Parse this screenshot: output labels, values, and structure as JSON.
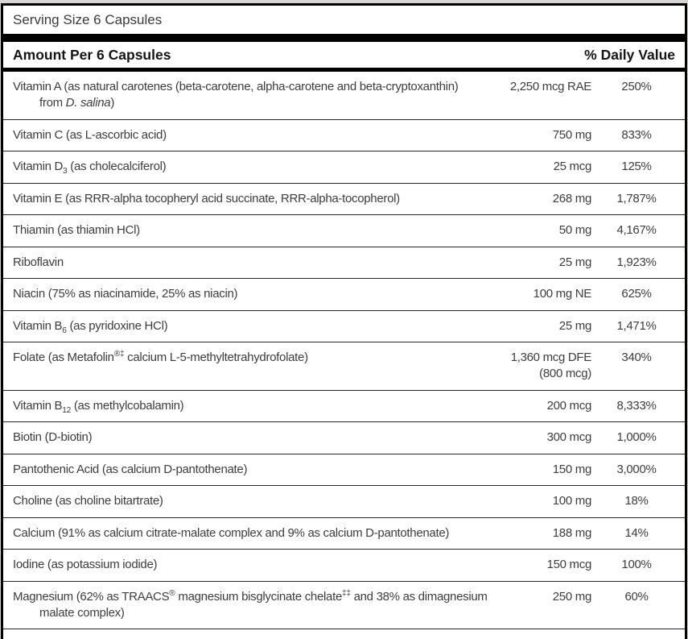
{
  "label": {
    "serving_size": "Serving Size 6 Capsules",
    "header": {
      "amount_col": "Amount Per 6 Capsules",
      "dv_col": "% Daily Value"
    },
    "rows": [
      {
        "name_lines": [
          "Vitamin A (as natural carotenes (beta-carotene, alpha-carotene and beta-cryptoxanthin)",
          "from <i>D. salina</i>)"
        ],
        "amount": "2,250 mcg RAE",
        "dv": "250%"
      },
      {
        "name_lines": [
          "Vitamin C (as L-ascorbic acid)"
        ],
        "amount": "750 mg",
        "dv": "833%"
      },
      {
        "name_lines": [
          "Vitamin D<sub>3</sub> (as cholecalciferol)"
        ],
        "amount": "25 mcg",
        "dv": "125%"
      },
      {
        "name_lines": [
          "Vitamin E (as RRR-alpha tocopheryl acid succinate, RRR-alpha-tocopherol)"
        ],
        "amount": "268 mg",
        "dv": "1,787%"
      },
      {
        "name_lines": [
          "Thiamin (as thiamin HCl)"
        ],
        "amount": "50 mg",
        "dv": "4,167%"
      },
      {
        "name_lines": [
          "Riboflavin"
        ],
        "amount": "25 mg",
        "dv": "1,923%"
      },
      {
        "name_lines": [
          "Niacin (75% as niacinamide, 25% as niacin)"
        ],
        "amount": "100 mg NE",
        "dv": "625%"
      },
      {
        "name_lines": [
          "Vitamin B<sub>6</sub> (as pyridoxine HCl)"
        ],
        "amount": "25 mg",
        "dv": "1,471%"
      },
      {
        "name_lines": [
          "Folate (as Metafolin<sup>®‡</sup> calcium L-5-methyltetrahydrofolate)"
        ],
        "amount": "1,360 mcg DFE",
        "amount2": "(800 mcg)",
        "dv": "340%"
      },
      {
        "name_lines": [
          "Vitamin B<sub>12</sub> (as methylcobalamin)"
        ],
        "amount": "200 mcg",
        "dv": "8,333%"
      },
      {
        "name_lines": [
          "Biotin (D-biotin)"
        ],
        "amount": "300 mcg",
        "dv": "1,000%"
      },
      {
        "name_lines": [
          "Pantothenic Acid (as calcium D-pantothenate)"
        ],
        "amount": "150 mg",
        "dv": "3,000%"
      },
      {
        "name_lines": [
          "Choline (as choline bitartrate)"
        ],
        "amount": "100 mg",
        "dv": "18%"
      },
      {
        "name_lines": [
          "Calcium (91% as calcium citrate-malate complex and 9% as calcium D-pantothenate)"
        ],
        "amount": "188 mg",
        "dv": "14%"
      },
      {
        "name_lines": [
          "Iodine (as potassium iodide)"
        ],
        "amount": "150 mcg",
        "dv": "100%"
      },
      {
        "name_lines": [
          "Magnesium (62% as TRAACS<sup>®</sup> magnesium bisglycinate chelate<sup>‡‡</sup> and 38% as dimagnesium",
          "malate complex)"
        ],
        "amount": "250 mg",
        "dv": "60%"
      }
    ]
  },
  "colors": {
    "text": "#3d3d3d",
    "heading": "#151515",
    "bar": "#000000",
    "divider": "#262626",
    "outer_background": "#d8d4d4"
  }
}
